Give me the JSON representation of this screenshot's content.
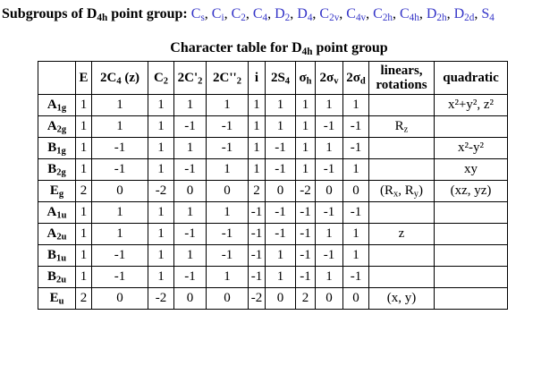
{
  "subgroups": {
    "label": "Subgroups of",
    "label_group": [
      "D",
      "4h"
    ],
    "label_suffix": "point group:",
    "items": [
      [
        "C",
        "s"
      ],
      [
        "C",
        "i"
      ],
      [
        "C",
        "2"
      ],
      [
        "C",
        "4"
      ],
      [
        "D",
        "2"
      ],
      [
        "D",
        "4"
      ],
      [
        "C",
        "2v"
      ],
      [
        "C",
        "4v"
      ],
      [
        "C",
        "2h"
      ],
      [
        "C",
        "4h"
      ],
      [
        "D",
        "2h"
      ],
      [
        "D",
        "2d"
      ],
      [
        "S",
        "4"
      ]
    ]
  },
  "caption": {
    "text": "Character table for",
    "group": [
      "D",
      "4h"
    ],
    "suffix": "point group"
  },
  "header": {
    "corner": "",
    "classes": [
      [
        "E",
        ""
      ],
      [
        "2C",
        "4",
        " (z)"
      ],
      [
        "C",
        "2",
        ""
      ],
      [
        "2C'",
        "2",
        ""
      ],
      [
        "2C''",
        "2",
        ""
      ],
      [
        "i",
        "",
        ""
      ],
      [
        "2S",
        "4",
        ""
      ],
      [
        "σ",
        "h",
        ""
      ],
      [
        "2σ",
        "v",
        ""
      ],
      [
        "2σ",
        "d",
        ""
      ]
    ],
    "linears": "linears,",
    "rotations": "rotations",
    "quadratic": "quadratic"
  },
  "rows": [
    {
      "irrep": [
        "A",
        "1g"
      ],
      "chars": [
        "1",
        "1",
        "1",
        "1",
        "1",
        "1",
        "1",
        "1",
        "1",
        "1"
      ],
      "linear": [],
      "quadratic": "x²+y², z²"
    },
    {
      "irrep": [
        "A",
        "2g"
      ],
      "chars": [
        "1",
        "1",
        "1",
        "-1",
        "-1",
        "1",
        "1",
        "1",
        "-1",
        "-1"
      ],
      "linear": [
        [
          "R",
          "z"
        ]
      ],
      "quadratic": ""
    },
    {
      "irrep": [
        "B",
        "1g"
      ],
      "chars": [
        "1",
        "-1",
        "1",
        "1",
        "-1",
        "1",
        "-1",
        "1",
        "1",
        "-1"
      ],
      "linear": [],
      "quadratic": "x²-y²"
    },
    {
      "irrep": [
        "B",
        "2g"
      ],
      "chars": [
        "1",
        "-1",
        "1",
        "-1",
        "1",
        "1",
        "-1",
        "1",
        "-1",
        "1"
      ],
      "linear": [],
      "quadratic": "xy"
    },
    {
      "irrep": [
        "E",
        "g"
      ],
      "chars": [
        "2",
        "0",
        "-2",
        "0",
        "0",
        "2",
        "0",
        "-2",
        "0",
        "0"
      ],
      "linear": [
        [
          "(R",
          "x"
        ],
        [
          ", R",
          "y"
        ],
        [
          ")",
          ""
        ]
      ],
      "quadratic": "(xz, yz)"
    },
    {
      "irrep": [
        "A",
        "1u"
      ],
      "chars": [
        "1",
        "1",
        "1",
        "1",
        "1",
        "-1",
        "-1",
        "-1",
        "-1",
        "-1"
      ],
      "linear": [],
      "quadratic": ""
    },
    {
      "irrep": [
        "A",
        "2u"
      ],
      "chars": [
        "1",
        "1",
        "1",
        "-1",
        "-1",
        "-1",
        "-1",
        "-1",
        "1",
        "1"
      ],
      "linear": [
        [
          "z",
          ""
        ]
      ],
      "quadratic": ""
    },
    {
      "irrep": [
        "B",
        "1u"
      ],
      "chars": [
        "1",
        "-1",
        "1",
        "1",
        "-1",
        "-1",
        "1",
        "-1",
        "-1",
        "1"
      ],
      "linear": [],
      "quadratic": ""
    },
    {
      "irrep": [
        "B",
        "2u"
      ],
      "chars": [
        "1",
        "-1",
        "1",
        "-1",
        "1",
        "-1",
        "1",
        "-1",
        "1",
        "-1"
      ],
      "linear": [],
      "quadratic": ""
    },
    {
      "irrep": [
        "E",
        "u"
      ],
      "chars": [
        "2",
        "0",
        "-2",
        "0",
        "0",
        "-2",
        "0",
        "2",
        "0",
        "0"
      ],
      "linear": [
        [
          "(x, y)",
          ""
        ]
      ],
      "quadratic": ""
    }
  ]
}
